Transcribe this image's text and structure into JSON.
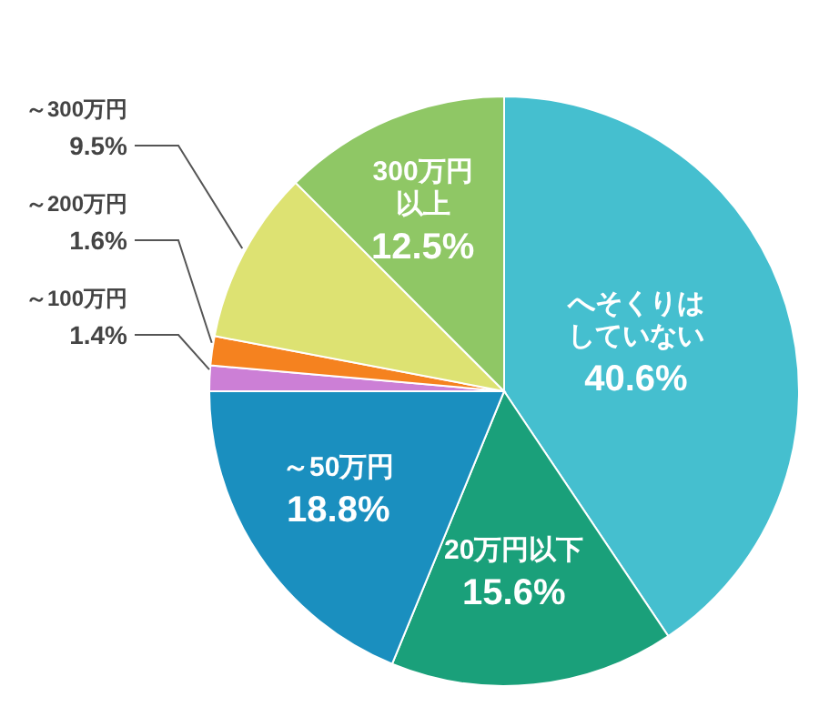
{
  "chart_data": {
    "type": "pie",
    "categories": [
      "へそくりはしていない",
      "20万円以下",
      "～50万円",
      "～100万円",
      "～200万円",
      "～300万円",
      "300万円以上"
    ],
    "values": [
      40.6,
      15.6,
      18.8,
      1.4,
      1.6,
      9.5,
      12.5
    ],
    "value_labels": [
      "40.6%",
      "15.6%",
      "18.8%",
      "1.4%",
      "1.6%",
      "9.5%",
      "12.5%"
    ],
    "colors": [
      "#45bfcf",
      "#1aa07a",
      "#1a8fbf",
      "#cc7fd6",
      "#f5821f",
      "#dde272",
      "#8fc765"
    ],
    "legend": false
  }
}
